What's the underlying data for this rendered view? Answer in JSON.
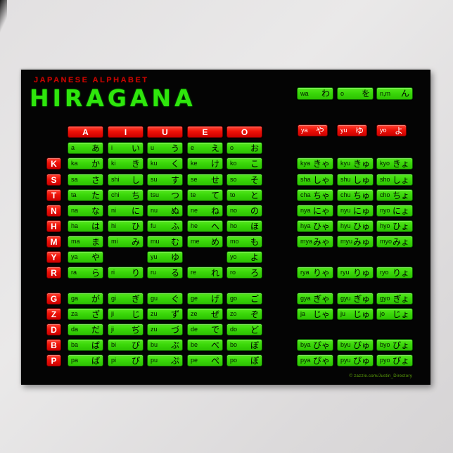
{
  "poster": {
    "subtitle": "JAPANESE ALPHABET",
    "title": "HIRAGANA",
    "watermark": "© zazzle.com/Justin_Directory",
    "colors": {
      "cell_green": "#3bd80a",
      "cell_red": "#ee1208",
      "title_green": "#2fe60c",
      "subtitle_red": "#c20500",
      "poster_black": "#040404"
    },
    "column_headers": [
      "A",
      "I",
      "U",
      "E",
      "O"
    ],
    "main_rows": [
      {
        "label": "",
        "cells": [
          {
            "romaji": "a",
            "kana": "あ"
          },
          {
            "romaji": "i",
            "kana": "い"
          },
          {
            "romaji": "u",
            "kana": "う"
          },
          {
            "romaji": "e",
            "kana": "え"
          },
          {
            "romaji": "o",
            "kana": "お"
          }
        ]
      },
      {
        "label": "K",
        "cells": [
          {
            "romaji": "ka",
            "kana": "か"
          },
          {
            "romaji": "ki",
            "kana": "き"
          },
          {
            "romaji": "ku",
            "kana": "く"
          },
          {
            "romaji": "ke",
            "kana": "け"
          },
          {
            "romaji": "ko",
            "kana": "こ"
          }
        ]
      },
      {
        "label": "S",
        "cells": [
          {
            "romaji": "sa",
            "kana": "さ"
          },
          {
            "romaji": "shi",
            "kana": "し"
          },
          {
            "romaji": "su",
            "kana": "す"
          },
          {
            "romaji": "se",
            "kana": "せ"
          },
          {
            "romaji": "so",
            "kana": "そ"
          }
        ]
      },
      {
        "label": "T",
        "cells": [
          {
            "romaji": "ta",
            "kana": "た"
          },
          {
            "romaji": "chi",
            "kana": "ち"
          },
          {
            "romaji": "tsu",
            "kana": "つ"
          },
          {
            "romaji": "te",
            "kana": "て"
          },
          {
            "romaji": "to",
            "kana": "と"
          }
        ]
      },
      {
        "label": "N",
        "cells": [
          {
            "romaji": "na",
            "kana": "な"
          },
          {
            "romaji": "ni",
            "kana": "に"
          },
          {
            "romaji": "nu",
            "kana": "ぬ"
          },
          {
            "romaji": "ne",
            "kana": "ね"
          },
          {
            "romaji": "no",
            "kana": "の"
          }
        ]
      },
      {
        "label": "H",
        "cells": [
          {
            "romaji": "ha",
            "kana": "は"
          },
          {
            "romaji": "hi",
            "kana": "ひ"
          },
          {
            "romaji": "fu",
            "kana": "ふ"
          },
          {
            "romaji": "he",
            "kana": "へ"
          },
          {
            "romaji": "ho",
            "kana": "ほ"
          }
        ]
      },
      {
        "label": "M",
        "cells": [
          {
            "romaji": "ma",
            "kana": "ま"
          },
          {
            "romaji": "mi",
            "kana": "み"
          },
          {
            "romaji": "mu",
            "kana": "む"
          },
          {
            "romaji": "me",
            "kana": "め"
          },
          {
            "romaji": "mo",
            "kana": "も"
          }
        ]
      },
      {
        "label": "Y",
        "cells": [
          {
            "romaji": "ya",
            "kana": "や"
          },
          null,
          {
            "romaji": "yu",
            "kana": "ゆ"
          },
          null,
          {
            "romaji": "yo",
            "kana": "よ"
          }
        ]
      },
      {
        "label": "R",
        "cells": [
          {
            "romaji": "ra",
            "kana": "ら"
          },
          {
            "romaji": "ri",
            "kana": "り"
          },
          {
            "romaji": "ru",
            "kana": "る"
          },
          {
            "romaji": "re",
            "kana": "れ"
          },
          {
            "romaji": "ro",
            "kana": "ろ"
          }
        ]
      },
      {
        "label": "G",
        "cells": [
          {
            "romaji": "ga",
            "kana": "が"
          },
          {
            "romaji": "gi",
            "kana": "ぎ"
          },
          {
            "romaji": "gu",
            "kana": "ぐ"
          },
          {
            "romaji": "ge",
            "kana": "げ"
          },
          {
            "romaji": "go",
            "kana": "ご"
          }
        ]
      },
      {
        "label": "Z",
        "cells": [
          {
            "romaji": "za",
            "kana": "ざ"
          },
          {
            "romaji": "ji",
            "kana": "じ"
          },
          {
            "romaji": "zu",
            "kana": "ず"
          },
          {
            "romaji": "ze",
            "kana": "ぜ"
          },
          {
            "romaji": "zo",
            "kana": "ぞ"
          }
        ]
      },
      {
        "label": "D",
        "cells": [
          {
            "romaji": "da",
            "kana": "だ"
          },
          {
            "romaji": "ji",
            "kana": "ぢ"
          },
          {
            "romaji": "zu",
            "kana": "づ"
          },
          {
            "romaji": "de",
            "kana": "で"
          },
          {
            "romaji": "do",
            "kana": "ど"
          }
        ]
      },
      {
        "label": "B",
        "cells": [
          {
            "romaji": "ba",
            "kana": "ば"
          },
          {
            "romaji": "bi",
            "kana": "び"
          },
          {
            "romaji": "bu",
            "kana": "ぶ"
          },
          {
            "romaji": "be",
            "kana": "べ"
          },
          {
            "romaji": "bo",
            "kana": "ぼ"
          }
        ]
      },
      {
        "label": "P",
        "cells": [
          {
            "romaji": "pa",
            "kana": "ぱ"
          },
          {
            "romaji": "pi",
            "kana": "ぴ"
          },
          {
            "romaji": "pu",
            "kana": "ぷ"
          },
          {
            "romaji": "pe",
            "kana": "ぺ"
          },
          {
            "romaji": "po",
            "kana": "ぽ"
          }
        ]
      }
    ],
    "wa_row": [
      {
        "romaji": "wa",
        "kana": "わ"
      },
      {
        "romaji": "o",
        "kana": "を"
      },
      {
        "romaji": "n,m",
        "kana": "ん"
      }
    ],
    "ya_row": [
      {
        "romaji": "ya",
        "kana": "や"
      },
      {
        "romaji": "yu",
        "kana": "ゆ"
      },
      {
        "romaji": "yo",
        "kana": "よ"
      }
    ],
    "combo_rows": [
      {
        "cells": [
          {
            "romaji": "kya",
            "kana": "きゃ"
          },
          {
            "romaji": "kyu",
            "kana": "きゅ"
          },
          {
            "romaji": "kyo",
            "kana": "きょ"
          }
        ]
      },
      {
        "cells": [
          {
            "romaji": "sha",
            "kana": "しゃ"
          },
          {
            "romaji": "shu",
            "kana": "しゅ"
          },
          {
            "romaji": "sho",
            "kana": "しょ"
          }
        ]
      },
      {
        "cells": [
          {
            "romaji": "cha",
            "kana": "ちゃ"
          },
          {
            "romaji": "chu",
            "kana": "ちゅ"
          },
          {
            "romaji": "cho",
            "kana": "ちょ"
          }
        ]
      },
      {
        "cells": [
          {
            "romaji": "nya",
            "kana": "にゃ"
          },
          {
            "romaji": "nyu",
            "kana": "にゅ"
          },
          {
            "romaji": "nyo",
            "kana": "にょ"
          }
        ]
      },
      {
        "cells": [
          {
            "romaji": "hya",
            "kana": "ひゃ"
          },
          {
            "romaji": "hyu",
            "kana": "ひゅ"
          },
          {
            "romaji": "hyo",
            "kana": "ひょ"
          }
        ]
      },
      {
        "cells": [
          {
            "romaji": "mya",
            "kana": "みゃ"
          },
          {
            "romaji": "myu",
            "kana": "みゅ"
          },
          {
            "romaji": "myo",
            "kana": "みょ"
          }
        ]
      },
      {
        "cells": [
          {
            "romaji": "rya",
            "kana": "りゃ"
          },
          {
            "romaji": "ryu",
            "kana": "りゅ"
          },
          {
            "romaji": "ryo",
            "kana": "りょ"
          }
        ]
      },
      {
        "cells": [
          {
            "romaji": "gya",
            "kana": "ぎゃ"
          },
          {
            "romaji": "gyu",
            "kana": "ぎゅ"
          },
          {
            "romaji": "gyo",
            "kana": "ぎょ"
          }
        ]
      },
      {
        "cells": [
          {
            "romaji": "ja",
            "kana": "じゃ"
          },
          {
            "romaji": "ju",
            "kana": "じゅ"
          },
          {
            "romaji": "jo",
            "kana": "じょ"
          }
        ]
      },
      {
        "cells": [
          {
            "romaji": "bya",
            "kana": "びゃ"
          },
          {
            "romaji": "byu",
            "kana": "びゅ"
          },
          {
            "romaji": "byo",
            "kana": "びょ"
          }
        ]
      },
      {
        "cells": [
          {
            "romaji": "pya",
            "kana": "ぴゃ"
          },
          {
            "romaji": "pyu",
            "kana": "ぴゅ"
          },
          {
            "romaji": "pyo",
            "kana": "ぴょ"
          }
        ]
      }
    ]
  }
}
